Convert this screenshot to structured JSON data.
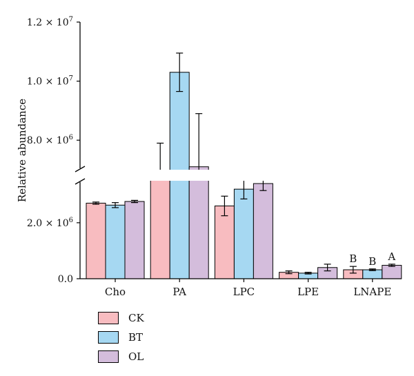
{
  "chart_data": {
    "type": "bar",
    "title": "",
    "xlabel": "",
    "ylabel": "Relative abundance",
    "categories": [
      "Cho",
      "PA",
      "LPC",
      "LPE",
      "LNAPE"
    ],
    "y_axis_break": [
      3500000,
      7000000
    ],
    "ylim": [
      0,
      12000000
    ],
    "y_ticks": [
      {
        "value": 0,
        "label": "0.0"
      },
      {
        "value": 2000000,
        "label": "2.0 × 10",
        "exp": "6"
      },
      {
        "value": 8000000,
        "label": "8.0 × 10",
        "exp": "6"
      },
      {
        "value": 10000000,
        "label": "1.0 × 10",
        "exp": "7"
      },
      {
        "value": 12000000,
        "label": "1.2 × 10",
        "exp": "7"
      }
    ],
    "series": [
      {
        "name": "CK",
        "color": "#f8bcc0",
        "values": [
          2700000,
          6400000,
          2600000,
          230000,
          320000
        ],
        "errors": [
          40000,
          1500000,
          350000,
          50000,
          120000
        ]
      },
      {
        "name": "BT",
        "color": "#a6d8f2",
        "values": [
          2630000,
          10300000,
          3200000,
          200000,
          320000
        ],
        "errors": [
          90000,
          650000,
          350000,
          30000,
          30000
        ]
      },
      {
        "name": "OL",
        "color": "#d4bddc",
        "values": [
          2760000,
          7100000,
          3400000,
          400000,
          480000
        ],
        "errors": [
          40000,
          1800000,
          250000,
          120000,
          40000
        ]
      }
    ],
    "annotations": [
      {
        "category": "LNAPE",
        "series": "CK",
        "text": "B"
      },
      {
        "category": "LNAPE",
        "series": "BT",
        "text": "B"
      },
      {
        "category": "LNAPE",
        "series": "OL",
        "text": "A"
      }
    ],
    "legend": {
      "position": "bottom-left"
    }
  }
}
